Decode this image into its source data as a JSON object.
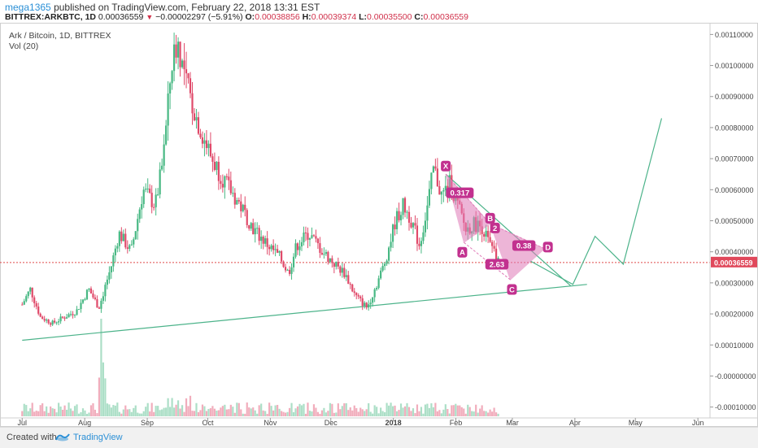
{
  "header": {
    "user": "mega1365",
    "published_text": "published on TradingView.com, February 22, 2018 13:31 EST",
    "symbol": "BITTREX:ARKBTC, 1D",
    "last": "0.00036559",
    "change_arrow": "▼",
    "change": "−0.00002297 (−5.91%)",
    "o_label": "O:",
    "o_value": "0.00038856",
    "h_label": "H:",
    "h_value": "0.00039374",
    "l_label": "L:",
    "l_value": "0.00035500",
    "c_label": "C:",
    "c_value": "0.00036559"
  },
  "legend": {
    "title": "Ark / Bitcoin, 1D, BITTREX",
    "volume": "Vol (20)"
  },
  "footer": {
    "created_with": "Created with",
    "brand": "TradingView"
  },
  "colors": {
    "up": "#47b883",
    "down": "#e04a6a",
    "pattern": "#e07ab8",
    "pattern_label": "#c2318f",
    "trend": "#4cb38a",
    "price_line": "#e04a4a"
  },
  "chart_data": {
    "type": "candlestick",
    "title": "Ark / Bitcoin, 1D, BITTREX",
    "x_ticks": [
      "Jul",
      "Aug",
      "Sep",
      "Oct",
      "Nov",
      "Dec",
      "2018",
      "Feb",
      "Mar",
      "Apr",
      "May",
      "Jun"
    ],
    "y_ticks": [
      "0.00110000",
      "0.00100000",
      "0.00090000",
      "0.00080000",
      "0.00070000",
      "0.00060000",
      "0.00050000",
      "0.00040000",
      "0.00030000",
      "0.00020000",
      "0.00010000",
      "-0.00000000",
      "-0.00010000"
    ],
    "y_tick_values": [
      0.0011,
      0.001,
      0.0009,
      0.0008,
      0.0007,
      0.0006,
      0.0005,
      0.0004,
      0.0003,
      0.0002,
      0.0001,
      0.0,
      -0.0001
    ],
    "ylim": [
      -0.000135,
      0.001135
    ],
    "current_price": "0.00036559",
    "current_price_value": 0.00036559,
    "price_path": [
      [
        "2017-07-01",
        0.00023
      ],
      [
        "2017-07-05",
        0.00028
      ],
      [
        "2017-07-10",
        0.00019
      ],
      [
        "2017-07-16",
        0.00017
      ],
      [
        "2017-07-22",
        0.00019
      ],
      [
        "2017-07-28",
        0.00021
      ],
      [
        "2017-08-03",
        0.00028
      ],
      [
        "2017-08-08",
        0.00022
      ],
      [
        "2017-08-14",
        0.00035
      ],
      [
        "2017-08-18",
        0.00046
      ],
      [
        "2017-08-24",
        0.0004
      ],
      [
        "2017-08-30",
        0.0006
      ],
      [
        "2017-09-05",
        0.00055
      ],
      [
        "2017-09-09",
        0.0007
      ],
      [
        "2017-09-13",
        0.001
      ],
      [
        "2017-09-16",
        0.00108
      ],
      [
        "2017-09-20",
        0.00095
      ],
      [
        "2017-09-26",
        0.00082
      ],
      [
        "2017-10-03",
        0.0007
      ],
      [
        "2017-10-10",
        0.00062
      ],
      [
        "2017-10-17",
        0.00055
      ],
      [
        "2017-10-24",
        0.00047
      ],
      [
        "2017-10-31",
        0.00042
      ],
      [
        "2017-11-06",
        0.00038
      ],
      [
        "2017-11-10",
        0.00033
      ],
      [
        "2017-11-14",
        0.00042
      ],
      [
        "2017-11-20",
        0.00046
      ],
      [
        "2017-11-27",
        0.0004
      ],
      [
        "2017-12-03",
        0.00036
      ],
      [
        "2017-12-08",
        0.00033
      ],
      [
        "2017-12-13",
        0.00026
      ],
      [
        "2017-12-19",
        0.00022
      ],
      [
        "2017-12-24",
        0.0003
      ],
      [
        "2017-12-28",
        0.00037
      ],
      [
        "2018-01-02",
        0.0005
      ],
      [
        "2018-01-06",
        0.00055
      ],
      [
        "2018-01-10",
        0.0005
      ],
      [
        "2018-01-14",
        0.00042
      ],
      [
        "2018-01-18",
        0.00055
      ],
      [
        "2018-01-21",
        0.00067
      ],
      [
        "2018-01-25",
        0.00058
      ],
      [
        "2018-01-29",
        0.00062
      ],
      [
        "2018-02-02",
        0.00055
      ],
      [
        "2018-02-06",
        0.00047
      ],
      [
        "2018-02-10",
        0.00049
      ],
      [
        "2018-02-14",
        0.00048
      ],
      [
        "2018-02-18",
        0.00042
      ],
      [
        "2018-02-22",
        0.000366
      ]
    ],
    "volume_note": "Vol (20)",
    "drawings": {
      "harmonic_points": {
        "X": [
          "2018-01-27",
          0.00065
        ],
        "A": [
          "2018-02-05",
          0.00043
        ],
        "B": [
          "2018-02-18",
          0.00049
        ],
        "C": [
          "2018-02-28",
          0.00031
        ],
        "D": [
          "2018-03-17",
          0.00041
        ]
      },
      "ratios": [
        "0.317",
        "2",
        "0.38",
        "2.63"
      ],
      "labels": [
        "X",
        "A",
        "B",
        "C",
        "D"
      ],
      "support_line": [
        [
          "2017-07-01",
          0.000115
        ],
        [
          "2018-04-07",
          0.000295
        ]
      ],
      "resistance_line": [
        [
          "2018-01-27",
          0.00065
        ],
        [
          "2018-03-30",
          0.00029
        ]
      ],
      "projection": [
        [
          "2018-03-10",
          0.00037
        ],
        [
          "2018-03-31",
          0.000295
        ],
        [
          "2018-04-11",
          0.00045
        ],
        [
          "2018-04-25",
          0.00036
        ],
        [
          "2018-05-14",
          0.00083
        ]
      ]
    }
  }
}
